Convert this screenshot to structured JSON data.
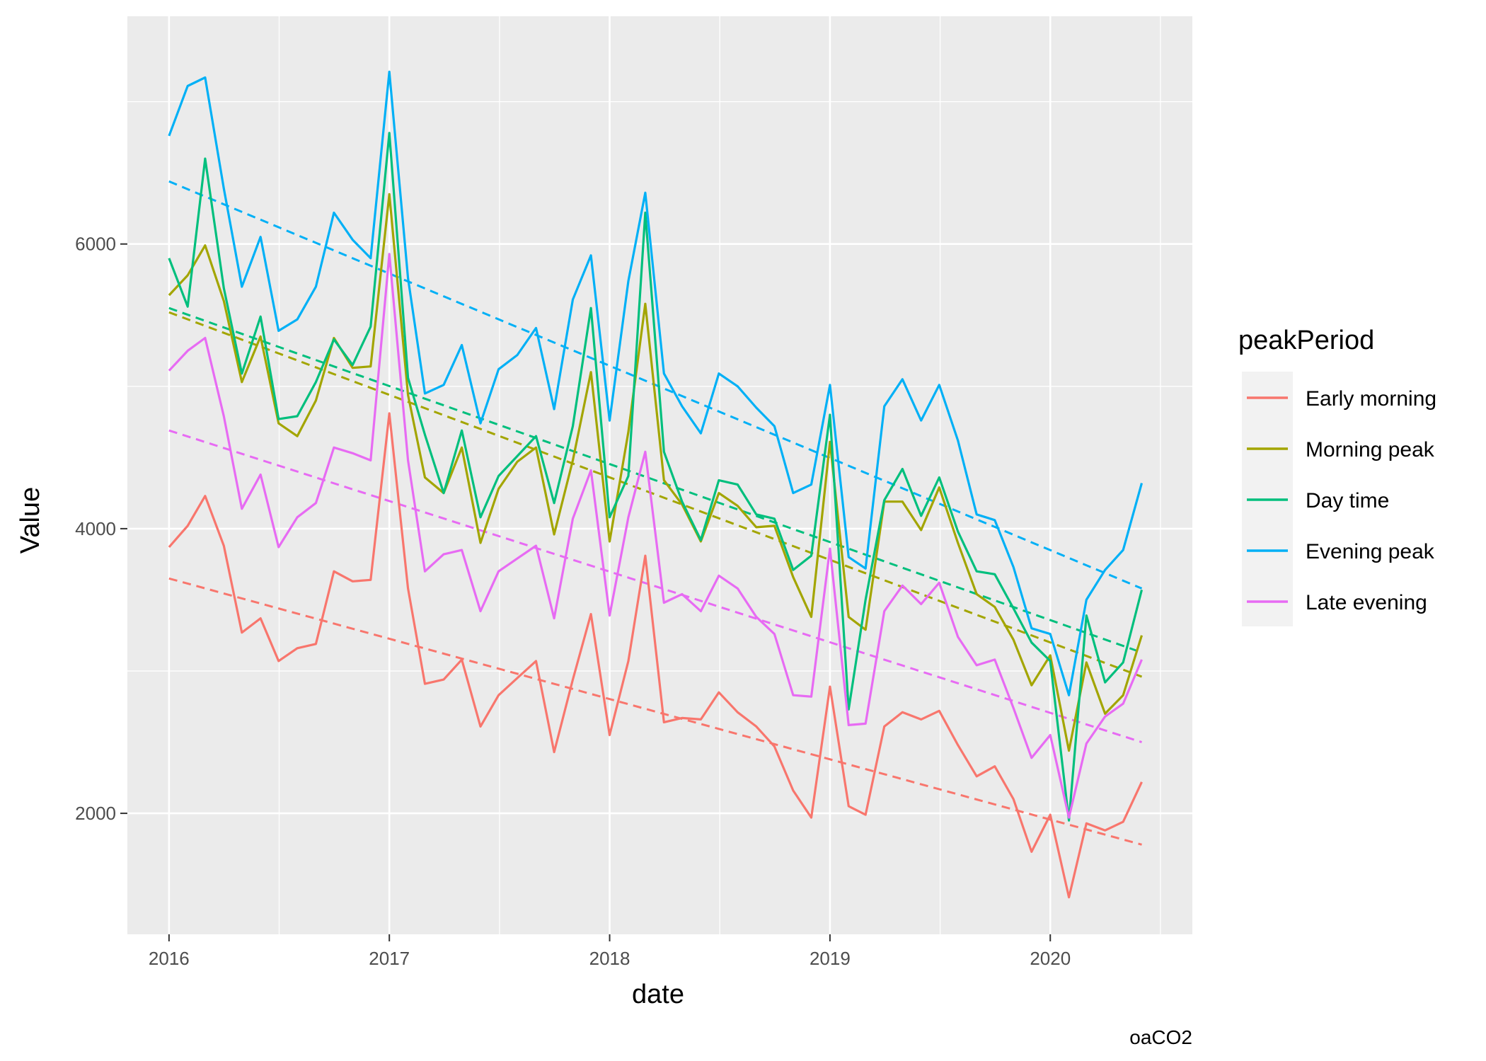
{
  "chart_data": {
    "type": "line",
    "title": "",
    "xlabel": "date",
    "ylabel": "Value",
    "caption": "oaCO2",
    "legend_title": "peakPeriod",
    "legend_position": "right",
    "grid": true,
    "x_ticks": [
      "2016",
      "2017",
      "2018",
      "2019",
      "2020"
    ],
    "y_ticks": [
      "2000",
      "4000",
      "6000"
    ],
    "xlim": [
      "2015-10-24",
      "2020-08-24"
    ],
    "ylim": [
      1150,
      7600
    ],
    "x": [
      "2016-01",
      "2016-02",
      "2016-03",
      "2016-04",
      "2016-05",
      "2016-06",
      "2016-07",
      "2016-08",
      "2016-09",
      "2016-10",
      "2016-11",
      "2016-12",
      "2017-01",
      "2017-02",
      "2017-03",
      "2017-04",
      "2017-05",
      "2017-06",
      "2017-07",
      "2017-08",
      "2017-09",
      "2017-10",
      "2017-11",
      "2017-12",
      "2018-01",
      "2018-02",
      "2018-03",
      "2018-04",
      "2018-05",
      "2018-06",
      "2018-07",
      "2018-08",
      "2018-09",
      "2018-10",
      "2018-11",
      "2018-12",
      "2019-01",
      "2019-02",
      "2019-03",
      "2019-04",
      "2019-05",
      "2019-06",
      "2019-07",
      "2019-08",
      "2019-09",
      "2019-10",
      "2019-11",
      "2019-12",
      "2020-01",
      "2020-02",
      "2020-03",
      "2020-04",
      "2020-05",
      "2020-06"
    ],
    "series": [
      {
        "name": "Early morning",
        "color": "#F8766D",
        "values": [
          3870,
          4020,
          4230,
          3880,
          3270,
          3370,
          3070,
          3160,
          3190,
          3700,
          3630,
          3640,
          4810,
          3580,
          2910,
          2940,
          3080,
          2610,
          2830,
          2950,
          3070,
          2430,
          2940,
          3400,
          2550,
          3070,
          3810,
          2640,
          2670,
          2660,
          2850,
          2710,
          2610,
          2470,
          2160,
          1970,
          2890,
          2050,
          1990,
          2610,
          2710,
          2660,
          2720,
          2480,
          2260,
          2330,
          2100,
          1730,
          1990,
          1410,
          1930,
          1880,
          1940,
          2220
        ],
        "trend": [
          3650,
          1780
        ]
      },
      {
        "name": "Morning peak",
        "color": "#A3A500",
        "values": [
          5640,
          5780,
          5990,
          5600,
          5030,
          5350,
          4740,
          4650,
          4900,
          5340,
          5130,
          5140,
          6350,
          4940,
          4360,
          4250,
          4570,
          3900,
          4280,
          4470,
          4570,
          3960,
          4480,
          5100,
          3910,
          4680,
          5580,
          4340,
          4170,
          3910,
          4250,
          4160,
          4010,
          4020,
          3660,
          3380,
          4610,
          3380,
          3290,
          4190,
          4190,
          3990,
          4290,
          3900,
          3540,
          3450,
          3220,
          2900,
          3110,
          2440,
          3060,
          2700,
          2830,
          3250
        ],
        "trend": [
          5520,
          2960
        ]
      },
      {
        "name": "Day time",
        "color": "#00BF7D",
        "values": [
          5900,
          5560,
          6600,
          5690,
          5090,
          5490,
          4770,
          4790,
          5030,
          5330,
          5150,
          5420,
          6780,
          5060,
          4660,
          4250,
          4690,
          4080,
          4370,
          4510,
          4650,
          4180,
          4720,
          5550,
          4080,
          4370,
          6220,
          4540,
          4190,
          3920,
          4340,
          4310,
          4100,
          4070,
          3710,
          3810,
          4800,
          2730,
          3500,
          4200,
          4420,
          4090,
          4360,
          3980,
          3700,
          3680,
          3440,
          3200,
          3070,
          1950,
          3390,
          2920,
          3060,
          3570
        ],
        "trend": [
          5550,
          3130
        ]
      },
      {
        "name": "Evening peak",
        "color": "#00B0F6",
        "values": [
          6760,
          7110,
          7170,
          6390,
          5700,
          6050,
          5390,
          5470,
          5700,
          6220,
          6030,
          5900,
          7210,
          5760,
          4950,
          5010,
          5290,
          4740,
          5120,
          5220,
          5410,
          4840,
          5610,
          5920,
          4760,
          5740,
          6360,
          5090,
          4860,
          4670,
          5090,
          5000,
          4850,
          4720,
          4250,
          4310,
          5010,
          3800,
          3720,
          4860,
          5050,
          4760,
          5010,
          4620,
          4100,
          4060,
          3730,
          3300,
          3260,
          2830,
          3500,
          3710,
          3850,
          4320
        ],
        "trend": [
          6440,
          3580
        ]
      },
      {
        "name": "Late evening",
        "color": "#E76BF3",
        "values": [
          5110,
          5250,
          5340,
          4790,
          4140,
          4380,
          3870,
          4080,
          4180,
          4570,
          4530,
          4480,
          5930,
          4480,
          3700,
          3820,
          3850,
          3420,
          3700,
          3790,
          3880,
          3370,
          4070,
          4410,
          3390,
          4080,
          4540,
          3480,
          3540,
          3420,
          3670,
          3580,
          3380,
          3260,
          2830,
          2820,
          3860,
          2620,
          2630,
          3420,
          3600,
          3470,
          3620,
          3240,
          3040,
          3080,
          2740,
          2390,
          2550,
          1970,
          2490,
          2680,
          2770,
          3080
        ],
        "trend": [
          4690,
          2500
        ]
      }
    ]
  }
}
